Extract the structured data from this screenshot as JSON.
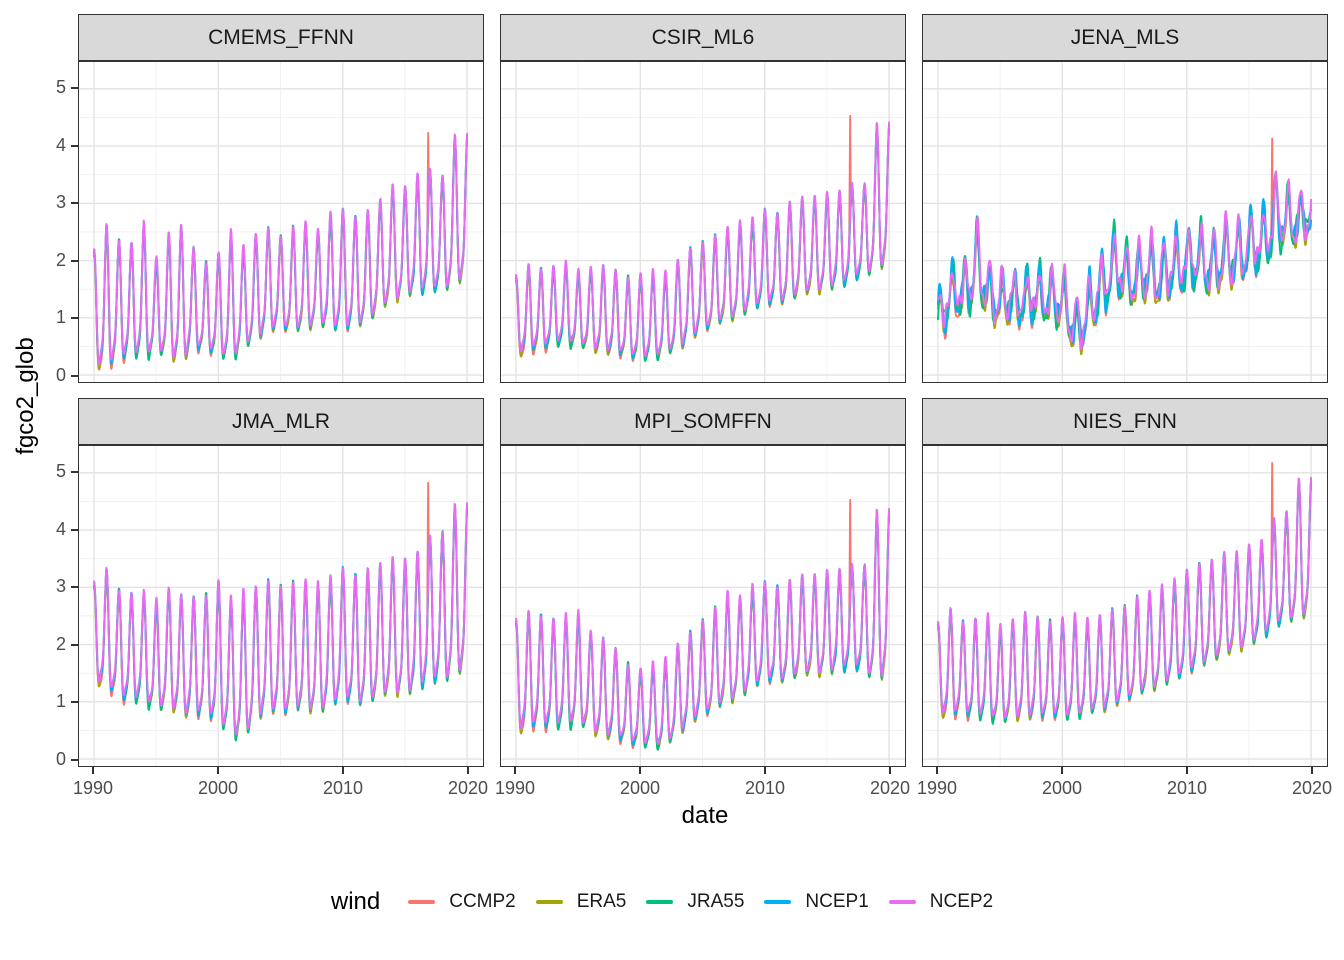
{
  "axes": {
    "x_label": "date",
    "y_label": "fgco2_glob",
    "x_ticks": [
      1990,
      2000,
      2010,
      2020
    ],
    "y_ticks": [
      0,
      1,
      2,
      3,
      4,
      5
    ]
  },
  "legend": {
    "title": "wind",
    "items": [
      "CCMP2",
      "ERA5",
      "JRA55",
      "NCEP1",
      "NCEP2"
    ]
  },
  "colors": {
    "ccmp2": "#F8766D",
    "era5": "#A3A500",
    "jra55": "#00BF7D",
    "ncep1": "#00B0F6",
    "ncep2": "#E76BF3",
    "strip_bg": "#D9D9D9",
    "panel_border": "#333333",
    "grid_major": "#E3E3E3",
    "grid_minor": "#EFEFEF",
    "tick_text": "#4D4D4D"
  },
  "chart_data": {
    "type": "line",
    "title": "",
    "xlabel": "date",
    "ylabel": "fgco2_glob",
    "facet_variable_values": [
      "CMEMS_FFNN",
      "CSIR_ML6",
      "JENA_MLS",
      "JMA_MLR",
      "MPI_SOMFFN",
      "NIES_FNN"
    ],
    "legend_title": "wind",
    "x_range": [
      1990,
      2020
    ],
    "x_ticks": [
      1990,
      2000,
      2010,
      2020
    ],
    "x_minor_ticks": [
      1995,
      2005,
      2015
    ],
    "y_ticks": [
      0,
      1,
      2,
      3,
      4,
      5
    ],
    "y_minor_ticks": [
      0.5,
      1.5,
      2.5,
      3.5,
      4.5
    ],
    "ylim": [
      -0.1,
      5.47
    ],
    "sampling": "monthly seasonal series 1990-2020; per-year peak/trough envelopes estimated from figure",
    "series": [
      {
        "name": "CCMP2",
        "color": "#F8766D",
        "scale": 1.0,
        "offset": -0.02,
        "early_extra": -0.07
      },
      {
        "name": "ERA5",
        "color": "#A3A500",
        "scale": 0.985,
        "offset": -0.06,
        "early_extra": 0
      },
      {
        "name": "JRA55",
        "color": "#00BF7D",
        "scale": 1.005,
        "offset": -0.02,
        "early_extra": 0,
        "slow_wobble": 0.05
      },
      {
        "name": "NCEP1",
        "color": "#00B0F6",
        "scale": 0.995,
        "offset": 0.0,
        "early_extra": 0
      },
      {
        "name": "NCEP2",
        "color": "#E76BF3",
        "scale": 1.0,
        "offset": 0.03,
        "early_extra": 0
      }
    ],
    "facets": [
      {
        "name": "CMEMS_FFNN",
        "noise": 0.05,
        "phase": 0,
        "years_start": 1990,
        "annual_peaks": [
          2.15,
          2.6,
          2.35,
          2.3,
          2.65,
          2.0,
          2.45,
          2.6,
          2.2,
          1.95,
          2.1,
          2.5,
          2.2,
          2.45,
          2.55,
          2.4,
          2.55,
          2.65,
          2.5,
          2.8,
          2.9,
          2.75,
          2.85,
          3.0,
          3.3,
          3.25,
          3.5,
          3.6,
          3.45,
          4.15
        ],
        "annual_troughs": [
          0.3,
          0.25,
          0.4,
          0.45,
          0.45,
          0.5,
          0.45,
          0.35,
          0.55,
          0.5,
          0.45,
          0.4,
          0.55,
          0.75,
          0.85,
          0.9,
          0.85,
          0.9,
          1.0,
          0.95,
          0.9,
          0.95,
          1.0,
          1.25,
          1.4,
          1.5,
          1.55,
          1.6,
          1.55,
          1.75
        ],
        "ccmp2_spike": {
          "year": 2016.87,
          "value": 4.25
        }
      },
      {
        "name": "CSIR_ML6",
        "noise": 0.05,
        "phase": 0,
        "years_start": 1990,
        "annual_peaks": [
          1.7,
          1.9,
          1.85,
          1.9,
          1.95,
          1.8,
          1.85,
          1.9,
          1.8,
          1.7,
          1.75,
          1.8,
          1.75,
          2.0,
          2.2,
          2.3,
          2.4,
          2.55,
          2.65,
          2.7,
          2.9,
          2.8,
          3.0,
          3.05,
          3.1,
          3.15,
          3.2,
          3.35,
          3.3,
          4.35
        ],
        "annual_troughs": [
          0.45,
          0.5,
          0.55,
          0.6,
          0.65,
          0.6,
          0.55,
          0.5,
          0.45,
          0.4,
          0.35,
          0.4,
          0.45,
          0.55,
          0.7,
          0.85,
          0.95,
          1.05,
          1.15,
          1.25,
          1.35,
          1.3,
          1.4,
          1.5,
          1.55,
          1.6,
          1.65,
          1.75,
          1.8,
          2.0
        ],
        "ccmp2_spike": {
          "year": 2016.87,
          "value": 4.55
        }
      },
      {
        "name": "JENA_MLS",
        "noise": 0.27,
        "phase": 0.15,
        "years_start": 1990,
        "annual_peaks": [
          1.45,
          1.85,
          1.9,
          2.75,
          1.95,
          1.75,
          1.7,
          1.85,
          1.8,
          1.9,
          1.75,
          1.3,
          1.55,
          2.1,
          2.5,
          2.3,
          2.2,
          2.4,
          2.3,
          2.45,
          2.6,
          2.55,
          2.5,
          2.6,
          2.7,
          2.8,
          2.9,
          3.5,
          3.3,
          3.1
        ],
        "annual_troughs": [
          0.85,
          1.1,
          1.15,
          1.5,
          1.2,
          1.1,
          1.05,
          1.1,
          1.05,
          1.1,
          1.0,
          0.6,
          0.75,
          1.2,
          1.5,
          1.45,
          1.4,
          1.5,
          1.45,
          1.55,
          1.7,
          1.65,
          1.6,
          1.7,
          1.8,
          1.9,
          2.0,
          2.3,
          2.4,
          2.5
        ],
        "ccmp2_spike": {
          "year": 2016.87,
          "value": 4.15
        }
      },
      {
        "name": "JMA_MLR",
        "noise": 0.06,
        "phase": 0,
        "years_start": 1990,
        "annual_peaks": [
          3.05,
          3.3,
          2.95,
          2.9,
          2.9,
          2.75,
          2.95,
          2.85,
          2.8,
          2.85,
          3.1,
          2.8,
          2.9,
          3.0,
          3.1,
          3.0,
          3.05,
          3.1,
          3.05,
          3.15,
          3.35,
          3.2,
          3.3,
          3.35,
          3.5,
          3.45,
          3.6,
          3.9,
          3.95,
          4.4
        ],
        "annual_troughs": [
          1.5,
          1.35,
          1.2,
          1.1,
          1.15,
          0.95,
          1.05,
          0.9,
          0.85,
          0.9,
          0.75,
          0.6,
          0.45,
          0.85,
          0.95,
          0.9,
          0.95,
          1.0,
          0.95,
          1.05,
          1.2,
          1.05,
          1.1,
          1.2,
          1.3,
          1.25,
          1.35,
          1.5,
          1.45,
          1.65
        ],
        "ccmp2_spike": {
          "year": 2016.87,
          "value": 4.85
        }
      },
      {
        "name": "MPI_SOMFFN",
        "noise": 0.06,
        "phase": 0,
        "years_start": 1990,
        "annual_peaks": [
          2.4,
          2.55,
          2.5,
          2.45,
          2.5,
          2.55,
          2.2,
          2.1,
          1.9,
          1.65,
          1.55,
          1.65,
          1.7,
          2.0,
          2.2,
          2.4,
          2.6,
          2.9,
          2.8,
          3.0,
          3.1,
          3.0,
          3.1,
          3.15,
          3.2,
          3.25,
          3.3,
          3.4,
          3.35,
          4.3
        ],
        "annual_troughs": [
          0.6,
          0.65,
          0.7,
          0.65,
          0.7,
          0.75,
          0.6,
          0.5,
          0.45,
          0.35,
          0.3,
          0.35,
          0.3,
          0.55,
          0.7,
          0.85,
          0.95,
          1.1,
          1.2,
          1.35,
          1.5,
          1.4,
          1.5,
          1.55,
          1.6,
          1.6,
          1.65,
          1.7,
          1.6,
          1.55
        ],
        "ccmp2_spike": {
          "year": 2016.87,
          "value": 4.55
        }
      },
      {
        "name": "NIES_FNN",
        "noise": 0.05,
        "phase": 0,
        "years_start": 1990,
        "annual_peaks": [
          2.35,
          2.6,
          2.4,
          2.45,
          2.5,
          2.3,
          2.4,
          2.55,
          2.45,
          2.4,
          2.45,
          2.5,
          2.4,
          2.5,
          2.6,
          2.65,
          2.8,
          2.9,
          3.0,
          3.1,
          3.3,
          3.4,
          3.45,
          3.55,
          3.6,
          3.7,
          3.8,
          4.2,
          4.3,
          4.85
        ],
        "annual_troughs": [
          0.9,
          0.85,
          0.9,
          0.8,
          0.85,
          0.75,
          0.8,
          0.85,
          0.8,
          0.85,
          0.8,
          0.85,
          0.9,
          0.95,
          1.0,
          1.1,
          1.2,
          1.3,
          1.4,
          1.5,
          1.6,
          1.7,
          1.8,
          1.9,
          2.0,
          2.1,
          2.2,
          2.4,
          2.5,
          2.6
        ],
        "ccmp2_spike": {
          "year": 2016.87,
          "value": 5.2
        }
      }
    ]
  }
}
